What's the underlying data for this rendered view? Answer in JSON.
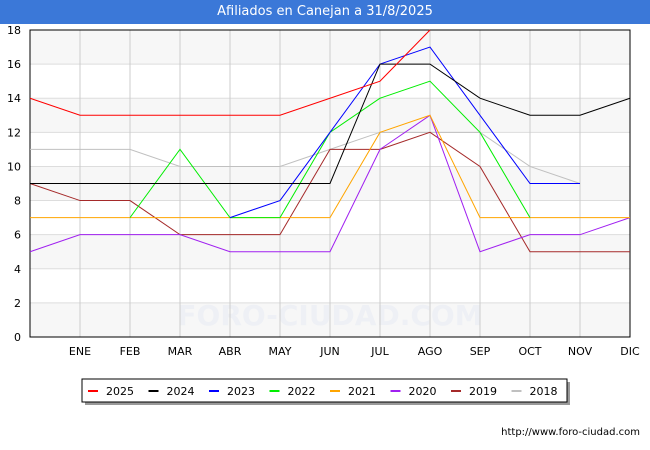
{
  "title": "Afiliados en Canejan a 31/8/2025",
  "footer": "http://www.foro-ciudad.com",
  "watermark": "FORO-CIUDAD.COM",
  "chart_data": {
    "type": "line",
    "title": "Afiliados en Canejan a 31/8/2025",
    "categories": [
      "",
      "ENE",
      "FEB",
      "MAR",
      "ABR",
      "MAY",
      "JUN",
      "JUL",
      "AGO",
      "SEP",
      "OCT",
      "NOV",
      "DIC"
    ],
    "ylim": [
      0,
      18
    ],
    "yticks": [
      0,
      2,
      4,
      6,
      8,
      10,
      12,
      14,
      16,
      18
    ],
    "grid": true,
    "legend_position": "bottom",
    "series": [
      {
        "name": "2025",
        "color": "#ff0000",
        "values": [
          14,
          13,
          13,
          13,
          13,
          13,
          14,
          15,
          18,
          null,
          null,
          null,
          null
        ]
      },
      {
        "name": "2024",
        "color": "#000000",
        "values": [
          9,
          9,
          9,
          9,
          9,
          9,
          9,
          16,
          16,
          14,
          13,
          13,
          14
        ]
      },
      {
        "name": "2023",
        "color": "#0000ff",
        "values": [
          null,
          null,
          null,
          null,
          7,
          8,
          12,
          16,
          17,
          13,
          9,
          9,
          null
        ]
      },
      {
        "name": "2022",
        "color": "#00ee00",
        "values": [
          null,
          null,
          7,
          11,
          7,
          7,
          12,
          14,
          15,
          12,
          7,
          null,
          null
        ]
      },
      {
        "name": "2021",
        "color": "#ffa500",
        "values": [
          7,
          7,
          7,
          7,
          7,
          7,
          7,
          12,
          13,
          7,
          7,
          7,
          7
        ]
      },
      {
        "name": "2020",
        "color": "#a020f0",
        "values": [
          5,
          6,
          6,
          6,
          5,
          5,
          5,
          11,
          13,
          5,
          6,
          6,
          7
        ]
      },
      {
        "name": "2019",
        "color": "#a52a2a",
        "values": [
          9,
          8,
          8,
          6,
          6,
          6,
          11,
          11,
          12,
          10,
          5,
          5,
          5
        ]
      },
      {
        "name": "2018",
        "color": "#c0c0c0",
        "values": [
          11,
          11,
          11,
          10,
          10,
          10,
          11,
          12,
          12,
          12,
          10,
          9,
          null
        ]
      }
    ]
  }
}
